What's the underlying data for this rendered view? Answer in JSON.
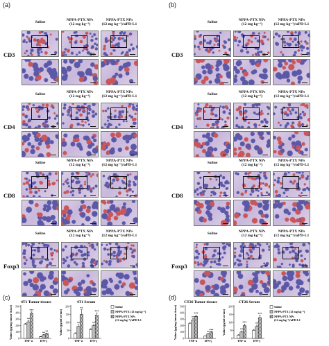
{
  "panels": {
    "a": "(a)",
    "b": "(b)",
    "c": "(c)",
    "d": "(d)"
  },
  "ihc": {
    "columns": [
      {
        "line1": "Saline",
        "line2": ""
      },
      {
        "line1": "NPPA-PTX NPs",
        "line2": "(12 mg kg⁻¹)"
      },
      {
        "line1": "NPPA-PTX NPs",
        "line2": "(12 mg kg⁻¹)/αPD-L1"
      }
    ],
    "rows": [
      "CD3",
      "CD4",
      "CD8",
      "Foxp3"
    ],
    "colors": {
      "background": "#cfc3e0",
      "nuclei": "#5b58a8",
      "positive": "#c9575a"
    }
  },
  "legend": {
    "saline": "Saline",
    "nppa": "NPPA-PTX (12 mg kg⁻¹)",
    "combo_line1": "NPPA-PTX NPs",
    "combo_line2": "(12 mg kg⁻¹)/αPD-L1"
  },
  "chart_data": [
    {
      "type": "bar",
      "panel": "c",
      "title": "4T1 Tumor tissues",
      "ylabel": "Values (pg/mg tumor tissue)",
      "categories": [
        "TNF-α",
        "IFN-γ"
      ],
      "ylim": [
        0,
        500
      ],
      "yticks": [
        "0",
        "100",
        "200",
        "300",
        "400",
        "500"
      ],
      "series": [
        {
          "name": "Saline",
          "values": [
            220,
            25
          ],
          "errors": [
            15,
            5
          ]
        },
        {
          "name": "NPPA-PTX (12 mg kg⁻¹)",
          "values": [
            260,
            55
          ],
          "errors": [
            18,
            6
          ]
        },
        {
          "name": "NPPA-PTX NPs (12 mg kg⁻¹)/αPD-L1",
          "values": [
            395,
            75
          ],
          "errors": [
            20,
            8
          ]
        }
      ],
      "significance": [
        [
          "",
          "**",
          "***"
        ],
        [
          "",
          "**",
          "**"
        ]
      ]
    },
    {
      "type": "bar",
      "panel": "c",
      "title": "4T1 Serum",
      "ylabel": "Values (pg/ml serum)",
      "categories": [
        "TNF-α",
        "IFN-γ"
      ],
      "ylim": [
        0,
        200
      ],
      "yticks": [
        "0",
        "50",
        "100",
        "150",
        "200"
      ],
      "series": [
        {
          "name": "Saline",
          "values": [
            30,
            55
          ],
          "errors": [
            5,
            6
          ]
        },
        {
          "name": "NPPA-PTX (12 mg kg⁻¹)",
          "values": [
            75,
            80
          ],
          "errors": [
            10,
            8
          ]
        },
        {
          "name": "NPPA-PTX NPs (12 mg kg⁻¹)/αPD-L1",
          "values": [
            150,
            145
          ],
          "errors": [
            30,
            15
          ]
        }
      ],
      "significance": [
        [
          "",
          "**",
          "**"
        ],
        [
          "",
          "**",
          "***"
        ]
      ]
    },
    {
      "type": "bar",
      "panel": "d",
      "title": "CT26 Tumor tissues",
      "ylabel": "Values (pg/mg tumor tissue)",
      "categories": [
        "TNF-α",
        "IFN-γ"
      ],
      "ylim": [
        0,
        500
      ],
      "yticks": [
        "0",
        "100",
        "200",
        "300",
        "400",
        "500"
      ],
      "series": [
        {
          "name": "Saline",
          "values": [
            230,
            35
          ],
          "errors": [
            15,
            5
          ]
        },
        {
          "name": "NPPA-PTX (12 mg kg⁻¹)",
          "values": [
            290,
            70
          ],
          "errors": [
            18,
            6
          ]
        },
        {
          "name": "NPPA-PTX NPs (12 mg kg⁻¹)/αPD-L1",
          "values": [
            345,
            100
          ],
          "errors": [
            20,
            8
          ]
        }
      ],
      "significance": [
        [
          "",
          "**",
          "***"
        ],
        [
          "",
          "**",
          "***"
        ]
      ]
    },
    {
      "type": "bar",
      "panel": "d",
      "title": "CT26 Serum",
      "ylabel": "Values (pg/ml serum)",
      "categories": [
        "TNF-α",
        "IFN-γ"
      ],
      "ylim": [
        0,
        200
      ],
      "yticks": [
        "0",
        "50",
        "100",
        "150",
        "200"
      ],
      "series": [
        {
          "name": "Saline",
          "values": [
            20,
            50
          ],
          "errors": [
            4,
            6
          ]
        },
        {
          "name": "NPPA-PTX (12 mg kg⁻¹)",
          "values": [
            40,
            75
          ],
          "errors": [
            6,
            8
          ]
        },
        {
          "name": "NPPA-PTX NPs (12 mg kg⁻¹)/αPD-L1",
          "values": [
            80,
            130
          ],
          "errors": [
            10,
            15
          ]
        }
      ],
      "significance": [
        [
          "",
          "**",
          "***"
        ],
        [
          "",
          "**",
          "***"
        ]
      ]
    }
  ]
}
